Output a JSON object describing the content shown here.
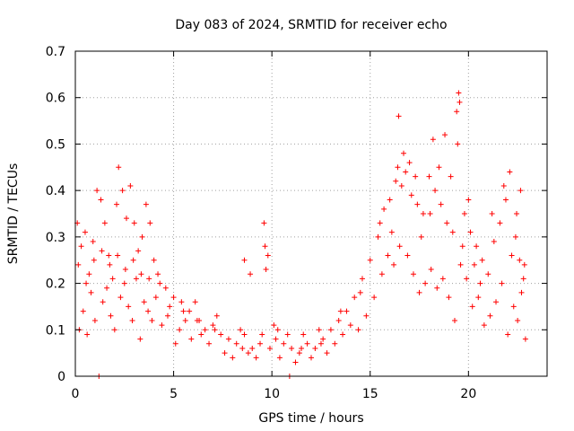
{
  "chart_data": {
    "type": "scatter",
    "title": "Day 083 of 2024, SRMTID for receiver echo",
    "xlabel": "GPS time / hours",
    "ylabel": "SRMTID / TECUs",
    "xlim": [
      0,
      24
    ],
    "ylim": [
      0,
      0.7
    ],
    "xticks": [
      0,
      5,
      10,
      15,
      20
    ],
    "yticks": [
      0,
      0.1,
      0.2,
      0.3,
      0.4,
      0.5,
      0.6,
      0.7
    ],
    "grid": true,
    "marker": "+",
    "color": "#ff0000",
    "series": [
      {
        "name": "SRMTID",
        "points": [
          [
            0.1,
            0.33
          ],
          [
            0.3,
            0.28
          ],
          [
            0.5,
            0.31
          ],
          [
            0.7,
            0.22
          ],
          [
            0.9,
            0.29
          ],
          [
            1.1,
            0.4
          ],
          [
            1.3,
            0.38
          ],
          [
            1.5,
            0.33
          ],
          [
            1.7,
            0.26
          ],
          [
            1.9,
            0.21
          ],
          [
            2.1,
            0.37
          ],
          [
            2.2,
            0.45
          ],
          [
            2.4,
            0.4
          ],
          [
            2.6,
            0.34
          ],
          [
            2.8,
            0.41
          ],
          [
            3.0,
            0.33
          ],
          [
            3.2,
            0.27
          ],
          [
            3.4,
            0.3
          ],
          [
            3.6,
            0.37
          ],
          [
            3.8,
            0.33
          ],
          [
            4.0,
            0.25
          ],
          [
            4.3,
            0.2
          ],
          [
            4.6,
            0.19
          ],
          [
            5.0,
            0.17
          ],
          [
            5.4,
            0.16
          ],
          [
            5.8,
            0.14
          ],
          [
            6.2,
            0.12
          ],
          [
            6.6,
            0.1
          ],
          [
            7.0,
            0.11
          ],
          [
            7.4,
            0.09
          ],
          [
            7.8,
            0.08
          ],
          [
            8.2,
            0.07
          ],
          [
            8.6,
            0.09
          ],
          [
            9.0,
            0.06
          ],
          [
            9.4,
            0.07
          ],
          [
            9.6,
            0.33
          ],
          [
            9.8,
            0.26
          ],
          [
            10.2,
            0.08
          ],
          [
            10.6,
            0.07
          ],
          [
            11.0,
            0.06
          ],
          [
            11.4,
            0.05
          ],
          [
            11.8,
            0.07
          ],
          [
            12.2,
            0.06
          ],
          [
            12.6,
            0.08
          ],
          [
            13.0,
            0.1
          ],
          [
            13.4,
            0.12
          ],
          [
            13.8,
            0.14
          ],
          [
            14.2,
            0.17
          ],
          [
            14.6,
            0.21
          ],
          [
            15.0,
            0.25
          ],
          [
            15.4,
            0.3
          ],
          [
            15.7,
            0.36
          ],
          [
            16.0,
            0.38
          ],
          [
            16.3,
            0.42
          ],
          [
            16.6,
            0.41
          ],
          [
            16.8,
            0.44
          ],
          [
            17.1,
            0.39
          ],
          [
            17.4,
            0.37
          ],
          [
            17.7,
            0.35
          ],
          [
            18.0,
            0.43
          ],
          [
            18.3,
            0.4
          ],
          [
            18.6,
            0.37
          ],
          [
            18.9,
            0.33
          ],
          [
            19.2,
            0.31
          ],
          [
            19.4,
            0.57
          ],
          [
            19.5,
            0.61
          ],
          [
            19.8,
            0.35
          ],
          [
            20.1,
            0.31
          ],
          [
            20.4,
            0.28
          ],
          [
            20.7,
            0.25
          ],
          [
            21.0,
            0.22
          ],
          [
            21.3,
            0.29
          ],
          [
            21.6,
            0.33
          ],
          [
            21.9,
            0.38
          ],
          [
            22.1,
            0.44
          ],
          [
            22.4,
            0.3
          ],
          [
            22.6,
            0.25
          ],
          [
            22.8,
            0.21
          ],
          [
            0.2,
            0.1
          ],
          [
            0.4,
            0.14
          ],
          [
            0.6,
            0.09
          ],
          [
            0.8,
            0.18
          ],
          [
            1.0,
            0.12
          ],
          [
            1.2,
            0.0
          ],
          [
            1.4,
            0.16
          ],
          [
            1.6,
            0.19
          ],
          [
            1.8,
            0.13
          ],
          [
            2.0,
            0.1
          ],
          [
            2.3,
            0.17
          ],
          [
            2.5,
            0.2
          ],
          [
            2.7,
            0.15
          ],
          [
            2.9,
            0.12
          ],
          [
            3.1,
            0.21
          ],
          [
            3.3,
            0.08
          ],
          [
            3.5,
            0.16
          ],
          [
            3.7,
            0.14
          ],
          [
            3.9,
            0.12
          ],
          [
            4.1,
            0.17
          ],
          [
            4.4,
            0.11
          ],
          [
            4.7,
            0.13
          ],
          [
            5.1,
            0.07
          ],
          [
            5.3,
            0.1
          ],
          [
            5.6,
            0.12
          ],
          [
            5.9,
            0.08
          ],
          [
            6.1,
            0.16
          ],
          [
            6.4,
            0.09
          ],
          [
            6.8,
            0.07
          ],
          [
            7.2,
            0.13
          ],
          [
            7.6,
            0.05
          ],
          [
            8.0,
            0.04
          ],
          [
            8.4,
            0.1
          ],
          [
            8.8,
            0.05
          ],
          [
            9.2,
            0.04
          ],
          [
            9.5,
            0.09
          ],
          [
            9.9,
            0.06
          ],
          [
            10.1,
            0.11
          ],
          [
            10.4,
            0.04
          ],
          [
            10.8,
            0.09
          ],
          [
            10.9,
            0.0
          ],
          [
            11.2,
            0.03
          ],
          [
            11.6,
            0.09
          ],
          [
            12.0,
            0.04
          ],
          [
            12.4,
            0.1
          ],
          [
            12.8,
            0.05
          ],
          [
            13.2,
            0.07
          ],
          [
            13.6,
            0.09
          ],
          [
            14.0,
            0.11
          ],
          [
            14.4,
            0.1
          ],
          [
            14.8,
            0.13
          ],
          [
            15.2,
            0.17
          ],
          [
            15.6,
            0.22
          ],
          [
            15.9,
            0.26
          ],
          [
            16.2,
            0.24
          ],
          [
            16.5,
            0.28
          ],
          [
            16.9,
            0.26
          ],
          [
            17.2,
            0.22
          ],
          [
            17.5,
            0.18
          ],
          [
            17.8,
            0.2
          ],
          [
            18.1,
            0.23
          ],
          [
            18.4,
            0.19
          ],
          [
            18.7,
            0.21
          ],
          [
            19.0,
            0.17
          ],
          [
            19.3,
            0.12
          ],
          [
            19.6,
            0.24
          ],
          [
            19.9,
            0.21
          ],
          [
            20.2,
            0.15
          ],
          [
            20.5,
            0.17
          ],
          [
            20.8,
            0.11
          ],
          [
            21.1,
            0.13
          ],
          [
            21.4,
            0.16
          ],
          [
            21.7,
            0.2
          ],
          [
            22.0,
            0.09
          ],
          [
            22.3,
            0.15
          ],
          [
            22.5,
            0.12
          ],
          [
            22.7,
            0.18
          ],
          [
            22.9,
            0.08
          ],
          [
            0.15,
            0.24
          ],
          [
            0.55,
            0.2
          ],
          [
            0.95,
            0.25
          ],
          [
            1.35,
            0.27
          ],
          [
            1.75,
            0.24
          ],
          [
            2.15,
            0.26
          ],
          [
            2.55,
            0.23
          ],
          [
            2.95,
            0.25
          ],
          [
            3.35,
            0.22
          ],
          [
            3.75,
            0.21
          ],
          [
            4.2,
            0.22
          ],
          [
            4.8,
            0.15
          ],
          [
            5.5,
            0.14
          ],
          [
            6.3,
            0.12
          ],
          [
            7.1,
            0.1
          ],
          [
            8.5,
            0.06
          ],
          [
            9.7,
            0.23
          ],
          [
            10.3,
            0.1
          ],
          [
            11.5,
            0.06
          ],
          [
            12.5,
            0.07
          ],
          [
            13.5,
            0.14
          ],
          [
            14.5,
            0.18
          ],
          [
            15.5,
            0.33
          ],
          [
            16.1,
            0.31
          ],
          [
            16.4,
            0.45
          ],
          [
            16.7,
            0.48
          ],
          [
            17.0,
            0.46
          ],
          [
            17.3,
            0.43
          ],
          [
            17.6,
            0.3
          ],
          [
            18.2,
            0.51
          ],
          [
            18.5,
            0.45
          ],
          [
            18.8,
            0.52
          ],
          [
            19.1,
            0.43
          ],
          [
            19.45,
            0.5
          ],
          [
            19.7,
            0.28
          ],
          [
            20.0,
            0.38
          ],
          [
            20.3,
            0.24
          ],
          [
            20.6,
            0.2
          ],
          [
            21.2,
            0.35
          ],
          [
            21.8,
            0.41
          ],
          [
            22.2,
            0.26
          ],
          [
            22.45,
            0.35
          ],
          [
            22.65,
            0.4
          ],
          [
            22.85,
            0.24
          ],
          [
            8.6,
            0.25
          ],
          [
            8.9,
            0.22
          ],
          [
            9.65,
            0.28
          ],
          [
            18.05,
            0.35
          ],
          [
            16.45,
            0.56
          ],
          [
            19.55,
            0.59
          ]
        ]
      }
    ]
  }
}
